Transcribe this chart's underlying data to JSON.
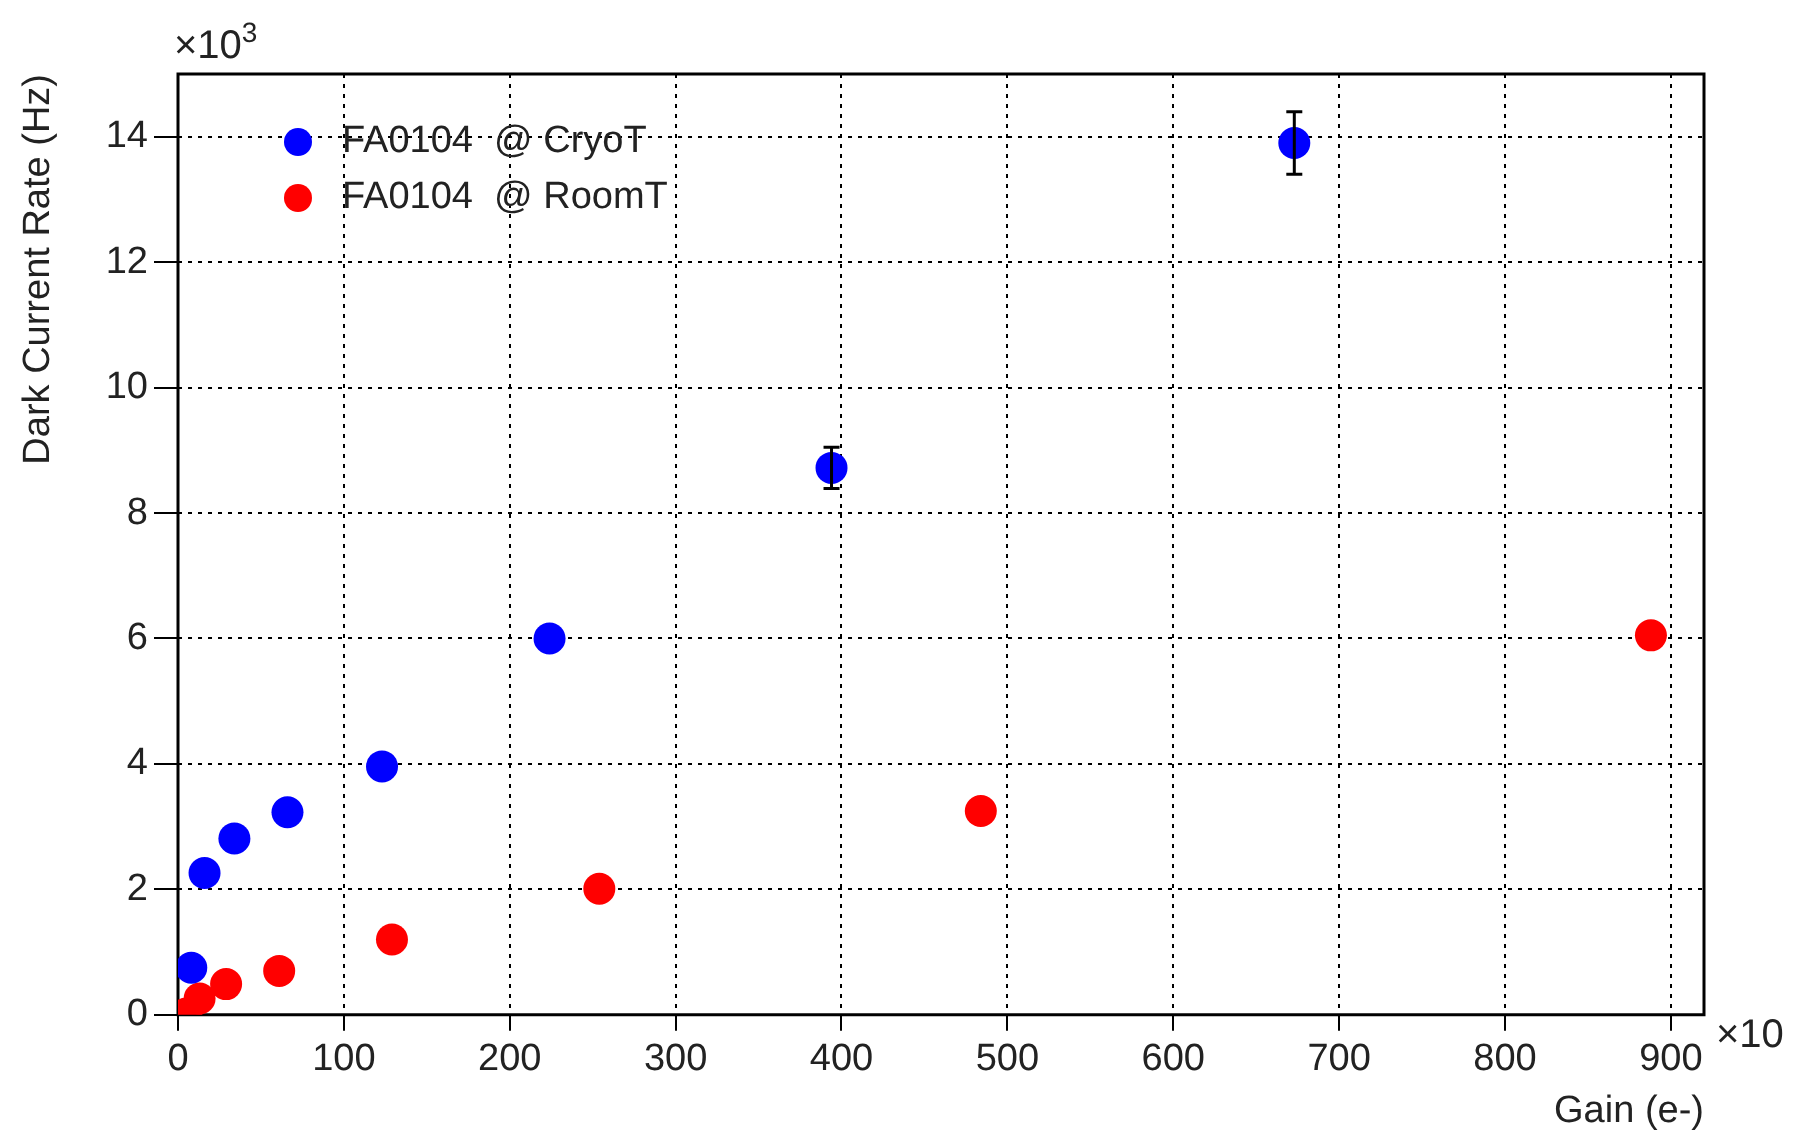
{
  "chart_data": {
    "type": "scatter",
    "xlabel": "Gain (e-)",
    "ylabel": "Dark Current Rate (Hz)",
    "xlim": [
      0,
      920
    ],
    "xticks": [
      0,
      100,
      200,
      300,
      400,
      500,
      600,
      700,
      800,
      900
    ],
    "ylim": [
      0,
      15
    ],
    "yticks": [
      0,
      2,
      4,
      6,
      8,
      10,
      12,
      14
    ],
    "grid": true,
    "legend": "top left",
    "marker": "circle",
    "annotations": [
      "×10$^{3}$",
      "×10"
    ],
    "series": [
      {
        "name": "FA0104  @ CryoT",
        "color": "#0000ff",
        "x": [
          8,
          16,
          34,
          66,
          123,
          224,
          394,
          673
        ],
        "values": [
          0.75,
          2.26,
          2.81,
          3.23,
          3.96,
          6.0,
          8.72,
          13.9
        ],
        "errors": [
          null,
          null,
          null,
          null,
          null,
          null,
          0.33,
          0.5
        ]
      },
      {
        "name": "FA0104  @ RoomT",
        "color": "#ff0000",
        "x": [
          5,
          13,
          29,
          61,
          129,
          254,
          484,
          888
        ],
        "values": [
          0.02,
          0.26,
          0.49,
          0.7,
          1.2,
          2.01,
          3.25,
          6.05
        ]
      }
    ]
  }
}
